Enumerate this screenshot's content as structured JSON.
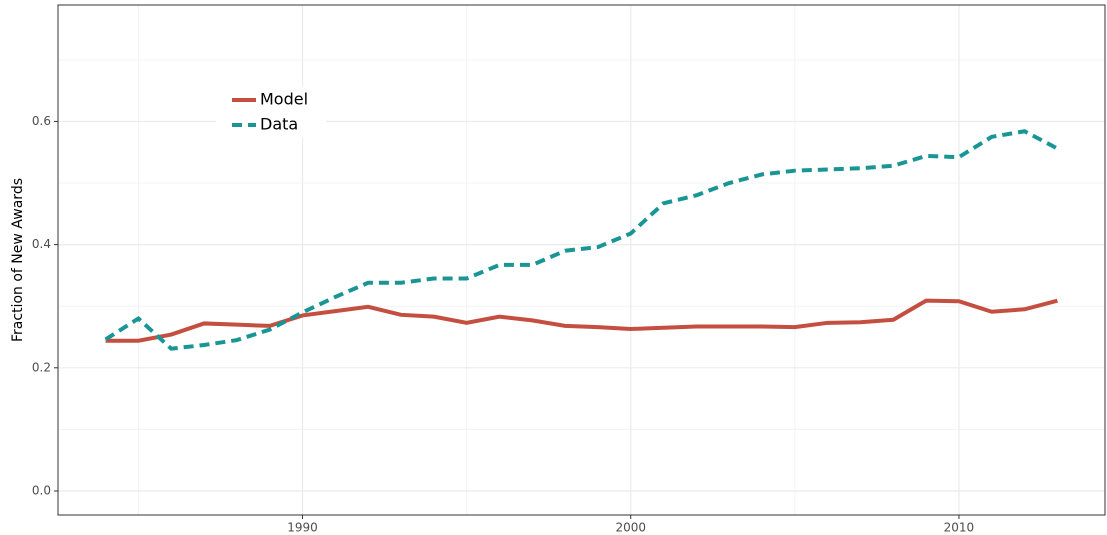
{
  "chart_data": {
    "type": "line",
    "y_label": "Fraction of New Awards",
    "x": [
      1984,
      1985,
      1986,
      1987,
      1988,
      1989,
      1990,
      1991,
      1992,
      1993,
      1994,
      1995,
      1996,
      1997,
      1998,
      1999,
      2000,
      2001,
      2002,
      2003,
      2004,
      2005,
      2006,
      2007,
      2008,
      2009,
      2010,
      2011,
      2012,
      2013
    ],
    "series": [
      {
        "name": "Model",
        "color": "#c44e3f",
        "linestyle": "solid",
        "values": [
          0.244,
          0.244,
          0.254,
          0.272,
          0.27,
          0.268,
          0.285,
          0.292,
          0.299,
          0.286,
          0.283,
          0.273,
          0.283,
          0.277,
          0.268,
          0.266,
          0.263,
          0.265,
          0.267,
          0.267,
          0.267,
          0.266,
          0.273,
          0.274,
          0.278,
          0.309,
          0.308,
          0.291,
          0.295,
          0.309
        ]
      },
      {
        "name": "Data",
        "color": "#1a9595",
        "linestyle": "dashed",
        "values": [
          0.246,
          0.28,
          0.231,
          0.237,
          0.245,
          0.262,
          0.29,
          0.315,
          0.338,
          0.338,
          0.345,
          0.345,
          0.367,
          0.367,
          0.39,
          0.396,
          0.418,
          0.467,
          0.48,
          0.5,
          0.514,
          0.52,
          0.522,
          0.524,
          0.528,
          0.544,
          0.542,
          0.575,
          0.584,
          0.556
        ]
      }
    ],
    "xlim": [
      1982.55,
      2014.45
    ],
    "xticks": [
      1990,
      2000,
      2010
    ],
    "xminor": [
      1985,
      1995,
      2005
    ],
    "ylim": [
      -0.039,
      0.789
    ],
    "yticks": [
      {
        "value": 0,
        "label": "0.0"
      },
      0.2,
      0.4,
      0.6
    ],
    "yminor": [
      0.1,
      0.3,
      0.5,
      0.7
    ],
    "grid": true,
    "legend": "top-left"
  }
}
